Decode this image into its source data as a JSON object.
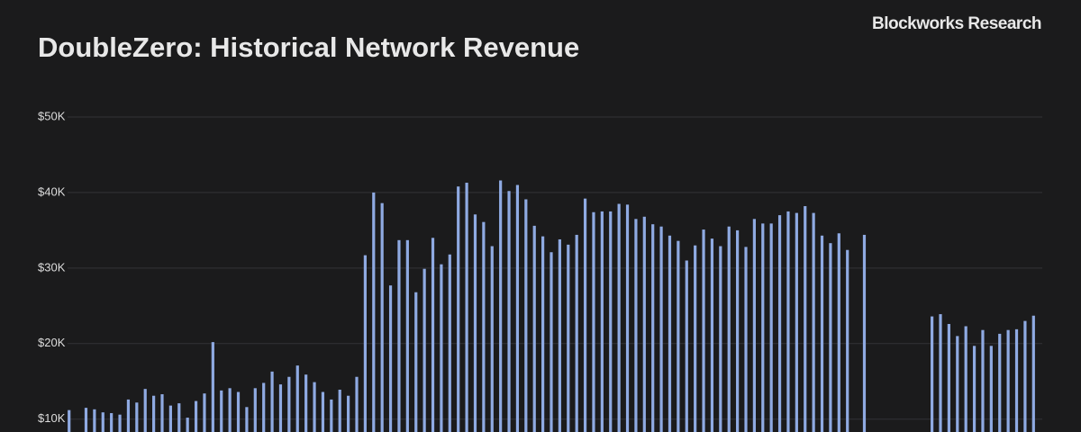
{
  "chart_data": {
    "type": "bar",
    "title": "DoubleZero: Historical Network Revenue",
    "source": "Blockworks Research",
    "color": "#8faae2",
    "grid": true,
    "ylim": [
      8300,
      50000
    ],
    "yticks": [
      {
        "value": 10000,
        "label": "$10K"
      },
      {
        "value": 20000,
        "label": "$20K"
      },
      {
        "value": 30000,
        "label": "$30K"
      },
      {
        "value": 40000,
        "label": "$40K"
      },
      {
        "value": 50000,
        "label": "$50K"
      }
    ],
    "categories": [
      null,
      null,
      null,
      null,
      null,
      null,
      null,
      null,
      null,
      null,
      null,
      null,
      null,
      null,
      null,
      null,
      null,
      null,
      null,
      null,
      null,
      null,
      null,
      null,
      null,
      null,
      null,
      null,
      null,
      null,
      null,
      null,
      null,
      null,
      null,
      null,
      null,
      null,
      null,
      null,
      null,
      null,
      null,
      null,
      null,
      null,
      null,
      null,
      null,
      null,
      null,
      null,
      null,
      null,
      null,
      null,
      null,
      null,
      null,
      null,
      null,
      null,
      null,
      null,
      null,
      null,
      null,
      null,
      null,
      null,
      null,
      null,
      null,
      null,
      null,
      null,
      null,
      null,
      null,
      null,
      null,
      null,
      null,
      null,
      null,
      null,
      null,
      null,
      null,
      null,
      null,
      null,
      null,
      null,
      null,
      null,
      null,
      null,
      null,
      null,
      null,
      null,
      null,
      null,
      null,
      null,
      null,
      null,
      null,
      null,
      null,
      null,
      null,
      null,
      null
    ],
    "values": [
      11200,
      null,
      11500,
      11300,
      10900,
      10800,
      10600,
      12600,
      12200,
      14000,
      13100,
      13300,
      11800,
      12100,
      10200,
      12400,
      13400,
      20200,
      13800,
      14100,
      13600,
      11600,
      14100,
      14800,
      16300,
      14600,
      15600,
      17100,
      15900,
      14900,
      13600,
      12600,
      13900,
      13100,
      15600,
      31700,
      40000,
      38600,
      27700,
      33700,
      33700,
      26800,
      29900,
      34000,
      30500,
      31800,
      40800,
      41300,
      37100,
      36100,
      32900,
      41600,
      40200,
      41000,
      39100,
      35600,
      34200,
      32100,
      33800,
      33100,
      34400,
      39200,
      37400,
      37500,
      37500,
      38500,
      38400,
      36500,
      36800,
      35800,
      35500,
      34300,
      33600,
      31000,
      33000,
      35100,
      33900,
      32900,
      35500,
      35000,
      32800,
      36500,
      35900,
      35900,
      37000,
      37500,
      37300,
      38200,
      37300,
      34300,
      33300,
      34600,
      32400,
      null,
      34400,
      null,
      null,
      null,
      null,
      null,
      null,
      null,
      23600,
      23900,
      22600,
      21000,
      22300,
      19700,
      21800,
      19700,
      21300,
      21800,
      21900,
      23000,
      23700
    ]
  }
}
